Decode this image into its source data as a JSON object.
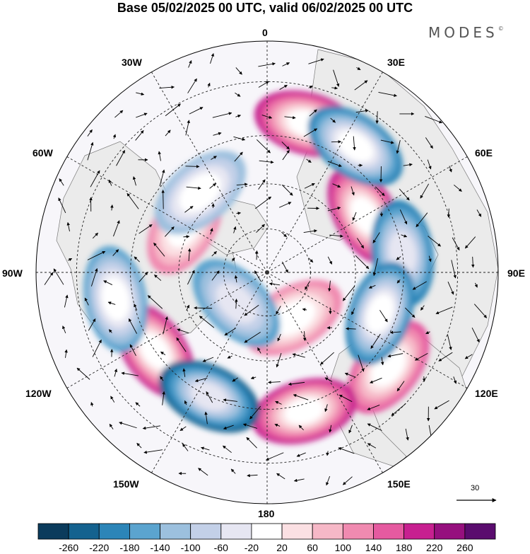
{
  "title": "Base 05/02/2025 00 UTC, valid 06/02/2025 00 UTC",
  "brand": "MODES",
  "brand_mark": "©",
  "longitudes": {
    "top": "0",
    "upper_left": "30W",
    "upper_right": "30E",
    "left_upper": "60W",
    "right_upper": "60E",
    "left": "90W",
    "right": "90E",
    "left_lower": "120W",
    "right_lower": "120E",
    "lower_left": "150W",
    "lower_right": "150E",
    "bottom": "180"
  },
  "reference_vector": "30",
  "colorbar": {
    "ticks": [
      "-260",
      "-220",
      "-180",
      "-140",
      "-100",
      "-60",
      "-20",
      "20",
      "60",
      "100",
      "140",
      "180",
      "220",
      "260"
    ],
    "colors": [
      "#0b3b5c",
      "#14628f",
      "#2c85b8",
      "#5ba4cf",
      "#9cc0de",
      "#c3d0e8",
      "#e6e6f2",
      "#ffffff",
      "#fbe0e3",
      "#f6b8c7",
      "#f08ab0",
      "#e55aa0",
      "#c72090",
      "#96107e",
      "#5a0c6e"
    ]
  },
  "anomaly_centers": [
    {
      "lon": 15,
      "lat": 40,
      "value": 200
    },
    {
      "lon": 60,
      "lat": 52,
      "value": 220
    },
    {
      "lon": 128,
      "lat": 40,
      "value": 180
    },
    {
      "lon": 165,
      "lat": 43,
      "value": 200
    },
    {
      "lon": -125,
      "lat": 45,
      "value": 220
    },
    {
      "lon": -60,
      "lat": 58,
      "value": 140
    },
    {
      "lon": 150,
      "lat": 72,
      "value": 120
    },
    {
      "lon": 35,
      "lat": 40,
      "value": -200
    },
    {
      "lon": 82,
      "lat": 45,
      "value": -180
    },
    {
      "lon": 110,
      "lat": 50,
      "value": -200
    },
    {
      "lon": -155,
      "lat": 45,
      "value": -220
    },
    {
      "lon": -100,
      "lat": 40,
      "value": -160
    },
    {
      "lon": -135,
      "lat": 75,
      "value": -140
    },
    {
      "lon": -40,
      "lat": 55,
      "value": -120
    }
  ]
}
